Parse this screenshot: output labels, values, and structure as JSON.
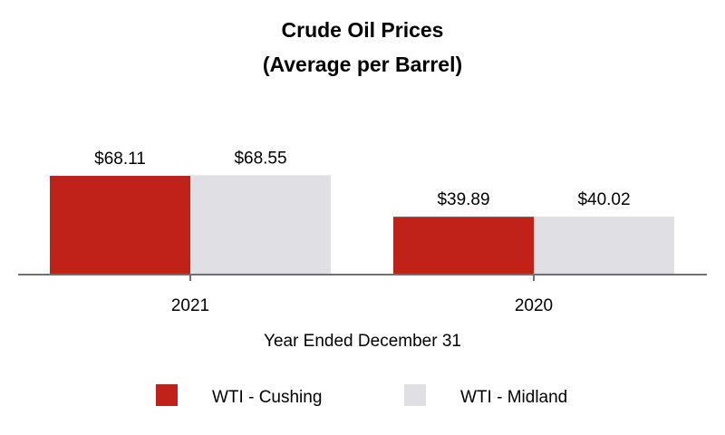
{
  "chart_data": {
    "type": "bar",
    "title": [
      "Crude Oil Prices",
      "(Average per Barrel)"
    ],
    "xlabel": "Year Ended December 31",
    "ylabel": "",
    "categories": [
      "2021",
      "2020"
    ],
    "series": [
      {
        "name": "WTI - Cushing",
        "values": [
          68.11,
          39.89
        ],
        "labels": [
          "$68.11",
          "$39.89"
        ],
        "color": "#c0221a"
      },
      {
        "name": "WTI - Midland",
        "values": [
          68.55,
          40.02
        ],
        "labels": [
          "$68.55",
          "$40.02"
        ],
        "color": "#e0e0e4"
      }
    ],
    "ylim": [
      0,
      100
    ],
    "grid": false,
    "legend": "bottom",
    "axis_color": "#707070"
  }
}
